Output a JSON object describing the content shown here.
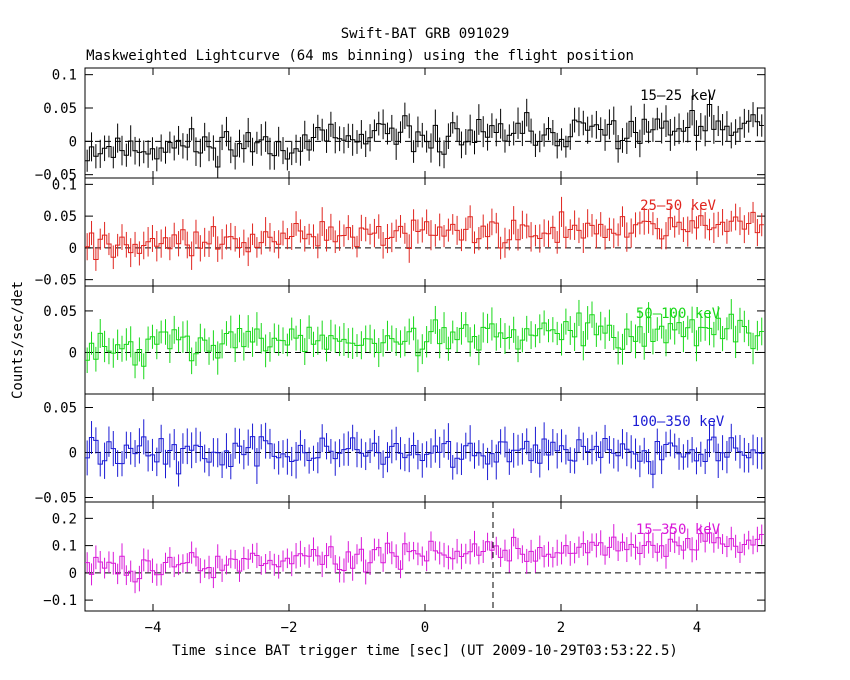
{
  "title": "Swift-BAT GRB 091029",
  "subtitle": "Maskweighted Lightcurve (64 ms binning) using the flight position",
  "ylabel": "Counts/sec/det",
  "xlabel": "Time since BAT trigger time [sec] (UT 2009-10-29T03:53:22.5)",
  "chart_data": {
    "type": "line",
    "xlim": [
      -5.0,
      5.0
    ],
    "x_ticks": [
      -4,
      -2,
      0,
      2,
      4
    ],
    "x_tick_labels": [
      "−4",
      "−2",
      "0",
      "2",
      "4"
    ],
    "bin_width_sec": 0.064,
    "trigger_marker_x": 1.0,
    "panels": [
      {
        "name": "15-25 keV",
        "label": "15–25 keV",
        "color": "#000000",
        "ylim": [
          -0.055,
          0.11
        ],
        "yticks": [
          -0.05,
          0,
          0.05,
          0.1
        ],
        "ytick_labels": [
          "−0.05",
          "0",
          "0.05",
          "0.1"
        ],
        "series": {
          "base": 0.005,
          "slope": 0.0035,
          "noise": 0.022,
          "err": 0.02,
          "seed": 11
        }
      },
      {
        "name": "25-50 keV",
        "label": "25–50 keV",
        "color": "#e0251f",
        "ylim": [
          -0.06,
          0.11
        ],
        "yticks": [
          -0.05,
          0,
          0.05,
          0.1
        ],
        "ytick_labels": [
          "−0.05",
          "0",
          "0.05",
          "0.1"
        ],
        "series": {
          "base": 0.022,
          "slope": 0.003,
          "noise": 0.02,
          "err": 0.02,
          "seed": 27
        }
      },
      {
        "name": "50-100 keV",
        "label": "50–100 keV",
        "color": "#18d818",
        "ylim": [
          -0.05,
          0.08
        ],
        "yticks": [
          0,
          0.05
        ],
        "ytick_labels": [
          "0",
          "0.05"
        ],
        "series": {
          "base": 0.017,
          "slope": 0.002,
          "noise": 0.017,
          "err": 0.017,
          "seed": 43
        }
      },
      {
        "name": "100-350 keV",
        "label": "100–350 keV",
        "color": "#1b1bd4",
        "ylim": [
          -0.055,
          0.065
        ],
        "yticks": [
          -0.05,
          0,
          0.05
        ],
        "ytick_labels": [
          "−0.05",
          "0",
          "0.05"
        ],
        "series": {
          "base": 0.002,
          "slope": 0.0,
          "noise": 0.017,
          "err": 0.017,
          "seed": 59
        }
      },
      {
        "name": "15-350 keV",
        "label": "15–350 keV",
        "color": "#d918d9",
        "ylim": [
          -0.14,
          0.26
        ],
        "yticks": [
          -0.1,
          0,
          0.1,
          0.2
        ],
        "ytick_labels": [
          "−0.1",
          "0",
          "0.1",
          "0.2"
        ],
        "series": {
          "base": 0.065,
          "slope": 0.01,
          "noise": 0.04,
          "err": 0.04,
          "seed": 73
        }
      }
    ]
  }
}
